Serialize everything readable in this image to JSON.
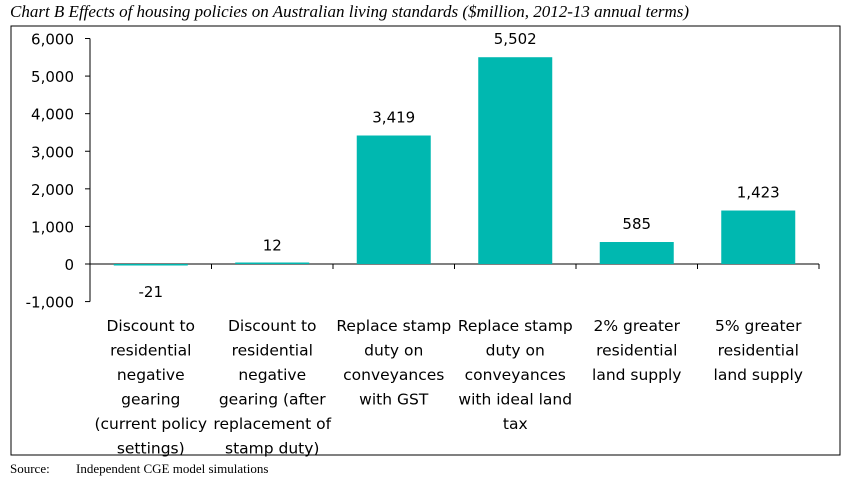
{
  "chart_data": {
    "type": "bar",
    "title": "Chart B Effects of housing policies on Australian living standards ($million, 2012-13 annual terms)",
    "categories": [
      [
        "Discount to",
        "residential",
        "negative",
        "gearing",
        "(current policy",
        "settings)"
      ],
      [
        "Discount to",
        "residential",
        "negative",
        "gearing (after",
        "replacement of",
        "stamp duty)"
      ],
      [
        "Replace stamp",
        "duty on",
        "conveyances",
        "with GST"
      ],
      [
        "Replace stamp",
        "duty on",
        "conveyances",
        "with ideal land",
        "tax"
      ],
      [
        "2% greater",
        "residential",
        "land supply"
      ],
      [
        "5% greater",
        "residential",
        "land supply"
      ]
    ],
    "values": [
      -21,
      12,
      3419,
      5502,
      585,
      1423
    ],
    "data_labels": [
      "-21",
      "12",
      "3,419",
      "5,502",
      "585",
      "1,423"
    ],
    "yticks": [
      -1000,
      0,
      1000,
      2000,
      3000,
      4000,
      5000,
      6000
    ],
    "ytick_labels": [
      "-1,000",
      "0",
      "1,000",
      "2,000",
      "3,000",
      "4,000",
      "5,000",
      "6,000"
    ],
    "ylim": [
      -1000,
      6000
    ],
    "xlabel": "",
    "ylabel": "",
    "grid": false,
    "bar_color": "#00B8B0"
  },
  "source": {
    "label": "Source:",
    "text": "Independent CGE model simulations"
  }
}
